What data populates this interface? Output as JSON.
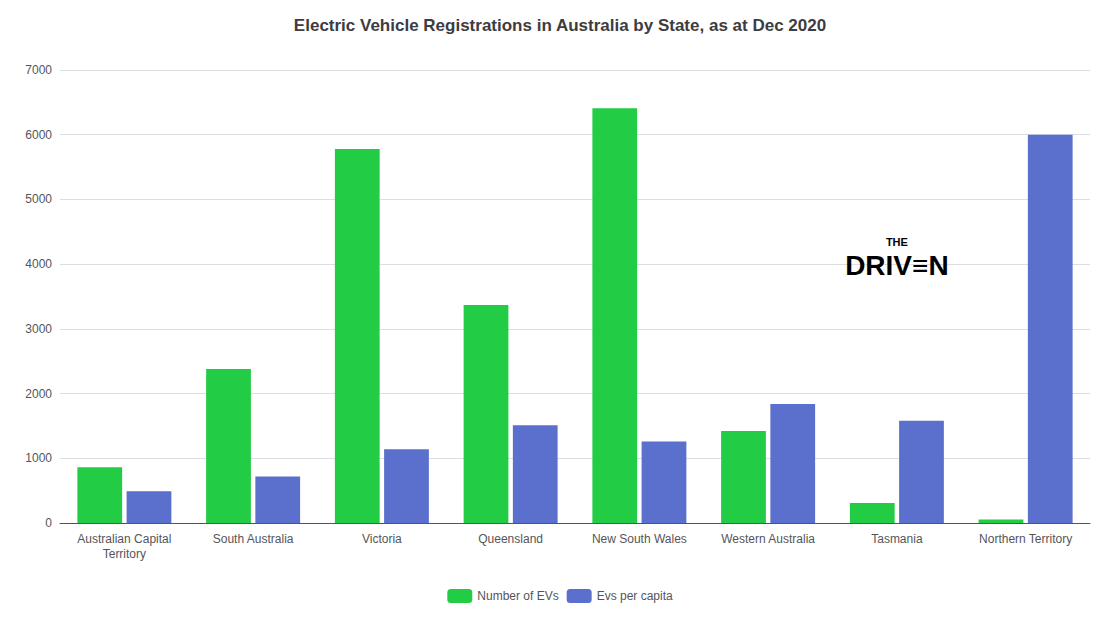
{
  "chart_data": {
    "type": "bar",
    "title": "Electric Vehicle Registrations in Australia by State, as at Dec 2020",
    "categories": [
      "Australian Capital\nTerritory",
      "South Australia",
      "Victoria",
      "Queensland",
      "New South Wales",
      "Western Australia",
      "Tasmania",
      "Northern Territory"
    ],
    "series": [
      {
        "name": "Number of EVs",
        "color": "#22CC44",
        "values": [
          860,
          2380,
          5780,
          3370,
          6410,
          1420,
          310,
          55
        ]
      },
      {
        "name": "Evs per capita",
        "color": "#5B6FCC",
        "values": [
          490,
          720,
          1140,
          1510,
          1260,
          1840,
          1580,
          6000
        ]
      }
    ],
    "ylim": [
      0,
      7000
    ],
    "yticks": [
      0,
      1000,
      2000,
      3000,
      4000,
      5000,
      6000,
      7000
    ],
    "grid": true,
    "legend": "bottom",
    "annotations": [
      "THE",
      "DRIV≡N"
    ]
  }
}
